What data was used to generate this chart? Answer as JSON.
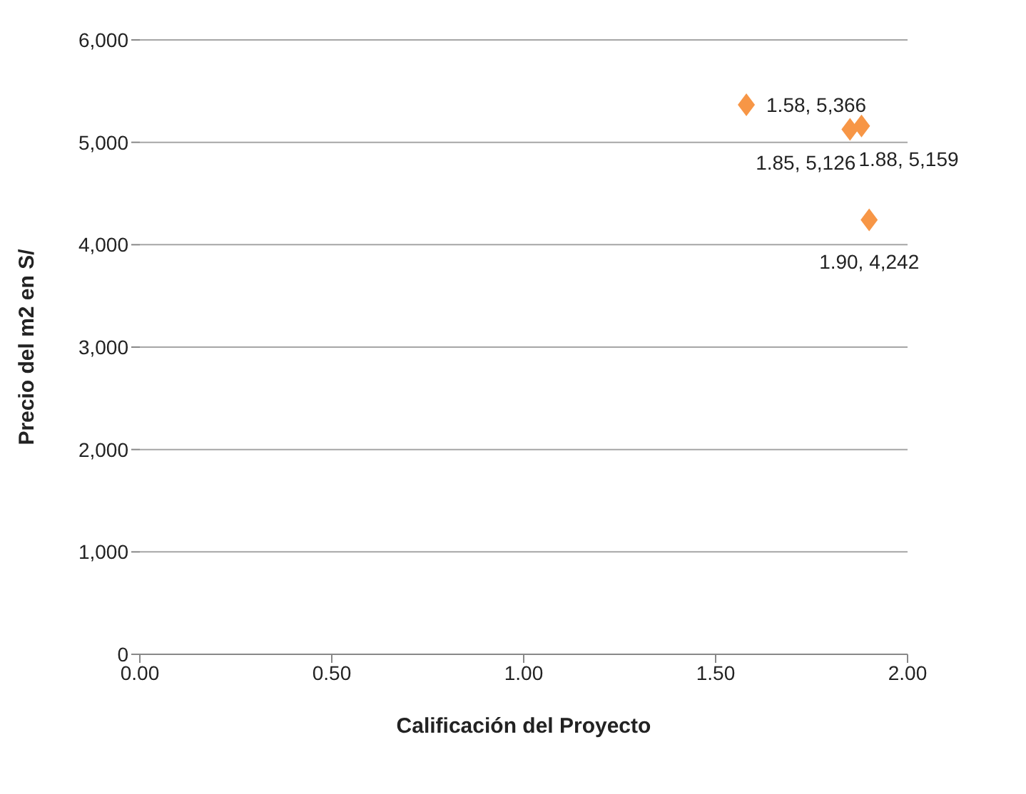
{
  "chart_data": {
    "type": "scatter",
    "xlabel": "Calificación del Proyecto",
    "ylabel": "Precio del m2 en S/",
    "x": [
      1.58,
      1.85,
      1.88,
      1.9
    ],
    "series": [
      {
        "color": "#f79646",
        "values": [
          5366,
          5126,
          5159,
          4242
        ],
        "value_labels": [
          "1.58, 5,366",
          "1.85, 5,126",
          "1.88, 5,159",
          "1.90, 4,242"
        ]
      }
    ],
    "xlim": [
      0,
      2
    ],
    "xticks": [
      {
        "value": 0,
        "label": "0.00"
      },
      {
        "value": 0.5,
        "label": "0.50"
      },
      {
        "value": 1,
        "label": "1.00"
      },
      {
        "value": 1.5,
        "label": "1.50"
      },
      {
        "value": 2,
        "label": "2.00"
      }
    ],
    "ylim": [
      0,
      6000
    ],
    "yticks": [
      0,
      {
        "value": 1000,
        "label": "1,000"
      },
      {
        "value": 2000,
        "label": "2,000"
      },
      {
        "value": 3000,
        "label": "3,000"
      },
      {
        "value": 4000,
        "label": "4,000"
      },
      {
        "value": 5000,
        "label": "5,000"
      },
      {
        "value": 6000,
        "label": "6,000"
      }
    ],
    "grid": "y",
    "marker": "diamond",
    "legend": false
  }
}
